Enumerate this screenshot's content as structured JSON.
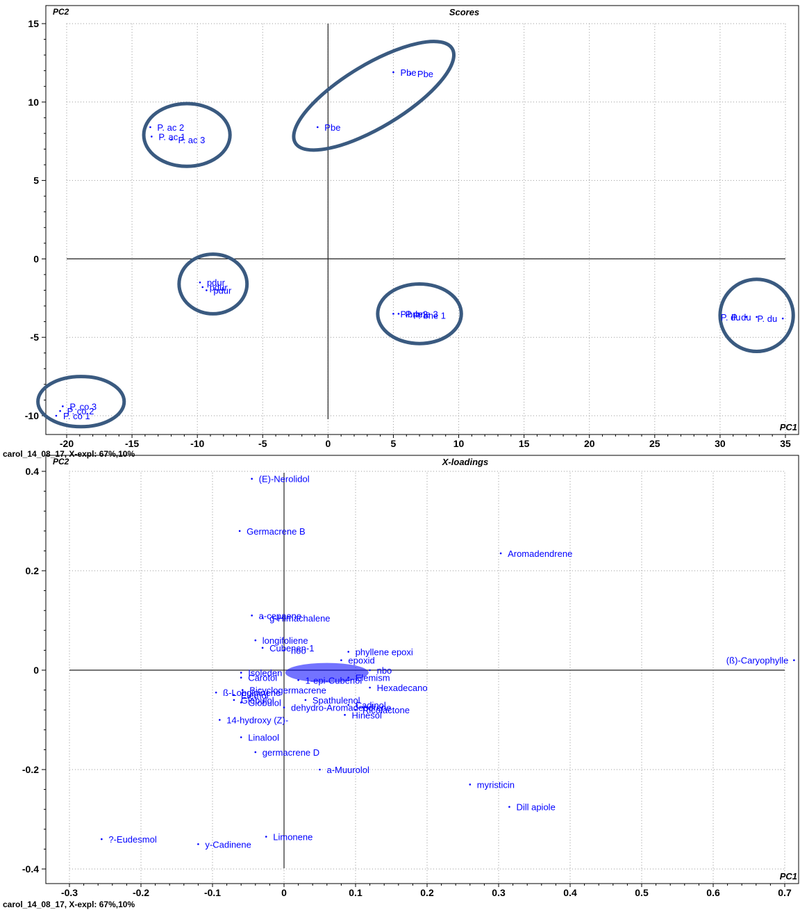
{
  "footer_label": "carol_14_08_17, X-expl: 67%,10%",
  "colors": {
    "points": "#0000ff",
    "text": "#000000",
    "circle": "#3a5a80",
    "grid": "#9a9a9a"
  },
  "chart_data": [
    {
      "type": "scatter",
      "title": "Scores",
      "xlabel": "PC1",
      "ylabel": "PC2",
      "xlim": [
        -20,
        35
      ],
      "ylim": [
        -10,
        15
      ],
      "xticks": [
        -20,
        -15,
        -10,
        -5,
        0,
        5,
        10,
        15,
        20,
        25,
        30,
        35
      ],
      "yticks": [
        15,
        10,
        5,
        0,
        -5,
        -10
      ],
      "grid": true,
      "points": [
        {
          "x": 5.0,
          "y": 11.9,
          "label": "Pbe"
        },
        {
          "x": 6.3,
          "y": 11.8,
          "label": "Pbe"
        },
        {
          "x": -0.8,
          "y": 8.4,
          "label": "Pbe"
        },
        {
          "x": -13.6,
          "y": 8.4,
          "label": "P. ac 2"
        },
        {
          "x": -13.5,
          "y": 7.8,
          "label": "P. ac 1"
        },
        {
          "x": -12.0,
          "y": 7.6,
          "label": "P. ac 3"
        },
        {
          "x": -9.8,
          "y": -1.5,
          "label": "pdur"
        },
        {
          "x": -9.6,
          "y": -1.8,
          "label": "pdur"
        },
        {
          "x": -9.3,
          "y": -2.0,
          "label": "pdur"
        },
        {
          "x": 5.0,
          "y": -3.5,
          "label": "P.bne2"
        },
        {
          "x": 5.4,
          "y": -3.5,
          "label": "P. bne 3"
        },
        {
          "x": 6.0,
          "y": -3.6,
          "label": "P. bne 1"
        },
        {
          "x": 32.0,
          "y": -3.7,
          "label": "P. du"
        },
        {
          "x": 32.8,
          "y": -3.7,
          "label": "P. du"
        },
        {
          "x": 34.8,
          "y": -3.8,
          "label": "P. du"
        },
        {
          "x": -20.3,
          "y": -9.4,
          "label": "P. co 3"
        },
        {
          "x": -20.5,
          "y": -9.7,
          "label": "P. co 2"
        },
        {
          "x": -20.8,
          "y": -10.0,
          "label": "P. co 1"
        }
      ],
      "circles": [
        {
          "cx": -10.8,
          "cy": 7.9,
          "rx": 3.3,
          "ry": 2.0,
          "angle": 0
        },
        {
          "cx": 3.5,
          "cy": 10.4,
          "rx": 7.0,
          "ry": 2.0,
          "angle": -31
        },
        {
          "cx": -8.8,
          "cy": -1.6,
          "rx": 2.6,
          "ry": 1.9,
          "angle": 0
        },
        {
          "cx": 7.0,
          "cy": -3.5,
          "rx": 3.2,
          "ry": 1.9,
          "angle": 0
        },
        {
          "cx": 32.8,
          "cy": -3.6,
          "rx": 2.8,
          "ry": 2.3,
          "angle": 0
        },
        {
          "cx": -18.9,
          "cy": -9.1,
          "rx": 3.3,
          "ry": 1.6,
          "angle": 0
        }
      ]
    },
    {
      "type": "scatter",
      "title": "X-loadings",
      "xlabel": "PC1",
      "ylabel": "PC2",
      "xlim": [
        -0.3,
        0.7
      ],
      "ylim": [
        -0.4,
        0.4
      ],
      "xticks": [
        -0.3,
        -0.2,
        -0.1,
        0,
        0.1,
        0.2,
        0.3,
        0.4,
        0.5,
        0.6,
        0.7
      ],
      "xtick_labels": [
        "-0.3",
        "-0.2",
        "-0.1",
        "0",
        "0.1",
        "0.2",
        "0.3",
        "0.4",
        "0.5",
        "0.6",
        "0.7"
      ],
      "yticks": [
        0.4,
        0.2,
        0,
        -0.2,
        -0.4
      ],
      "ytick_labels": [
        "0.4",
        "0.2",
        "0",
        "-0.2",
        "-0.4"
      ],
      "grid": true,
      "points": [
        {
          "x": -0.045,
          "y": 0.385,
          "label": "(E)-Nerolidol"
        },
        {
          "x": -0.062,
          "y": 0.28,
          "label": "Germacrene B"
        },
        {
          "x": 0.303,
          "y": 0.235,
          "label": "Aromadendrene"
        },
        {
          "x": -0.045,
          "y": 0.11,
          "label": "a-cepaene"
        },
        {
          "x": -0.03,
          "y": 0.105,
          "label": "g-Himachalene"
        },
        {
          "x": -0.04,
          "y": 0.06,
          "label": "longifoliene"
        },
        {
          "x": -0.03,
          "y": 0.045,
          "label": "Cubenen-1"
        },
        {
          "x": 0.0,
          "y": 0.04,
          "label": "noo"
        },
        {
          "x": 0.09,
          "y": 0.037,
          "label": "phyllene epoxi"
        },
        {
          "x": 0.08,
          "y": 0.02,
          "label": "epoxid"
        },
        {
          "x": 0.713,
          "y": 0.02,
          "label": "(ß)-Caryophylle"
        },
        {
          "x": 0.12,
          "y": 0.0,
          "label": "nbo"
        },
        {
          "x": -0.06,
          "y": -0.005,
          "label": "Isoleden"
        },
        {
          "x": -0.06,
          "y": -0.015,
          "label": "Carotol"
        },
        {
          "x": 0.09,
          "y": -0.015,
          "label": "Elemism"
        },
        {
          "x": 0.02,
          "y": -0.02,
          "label": "1-epi-Cubenol"
        },
        {
          "x": 0.12,
          "y": -0.035,
          "label": "Hexadecano"
        },
        {
          "x": -0.095,
          "y": -0.045,
          "label": "ß-Longipinene"
        },
        {
          "x": -0.058,
          "y": -0.04,
          "label": "Bicyclogermacrene"
        },
        {
          "x": -0.07,
          "y": -0.05,
          "label": "Elemol"
        },
        {
          "x": -0.07,
          "y": -0.06,
          "label": "Globulol"
        },
        {
          "x": -0.06,
          "y": -0.065,
          "label": "Globulol"
        },
        {
          "x": 0.03,
          "y": -0.06,
          "label": "Spathulenol"
        },
        {
          "x": 0.09,
          "y": -0.07,
          "label": "Cadinol"
        },
        {
          "x": 0.0,
          "y": -0.075,
          "label": "dehydro-Aromadendrene"
        },
        {
          "x": 0.1,
          "y": -0.08,
          "label": "Ricolactone"
        },
        {
          "x": 0.085,
          "y": -0.09,
          "label": "Hinesol"
        },
        {
          "x": -0.09,
          "y": -0.1,
          "label": "14-hydroxy (Z)-"
        },
        {
          "x": -0.06,
          "y": -0.135,
          "label": "Linalool"
        },
        {
          "x": -0.04,
          "y": -0.165,
          "label": "germacrene D"
        },
        {
          "x": 0.05,
          "y": -0.2,
          "label": "a-Muurolol"
        },
        {
          "x": 0.26,
          "y": -0.23,
          "label": "myristicin"
        },
        {
          "x": 0.315,
          "y": -0.275,
          "label": "Dill apiole"
        },
        {
          "x": -0.025,
          "y": -0.335,
          "label": "Limonene"
        },
        {
          "x": -0.255,
          "y": -0.34,
          "label": "?-Eudesmol"
        },
        {
          "x": -0.12,
          "y": -0.35,
          "label": "y-Cadinene"
        }
      ]
    }
  ]
}
